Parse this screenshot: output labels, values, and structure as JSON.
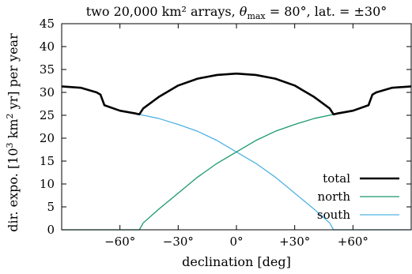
{
  "chart_data": {
    "type": "line",
    "title": "two 20,000 km² arrays, θmax = 80°, lat. = ±30°",
    "title_parts": {
      "pre": "two 20,000 km² arrays, ",
      "theta": "θ",
      "theta_sub": "max",
      "post": " = 80°, lat. = ±30°"
    },
    "xlabel": "declination [deg]",
    "ylabel": "dir. expo. [10³ km² yr] per year",
    "ylabel_parts": {
      "pre": "dir. expo. [10",
      "sup1": "3",
      "mid": " km",
      "sup2": "2",
      "post": " yr] per year"
    },
    "xlim": [
      -90,
      90
    ],
    "ylim": [
      0,
      45
    ],
    "x_ticks": [
      -60,
      -30,
      0,
      30,
      60
    ],
    "x_tick_labels": [
      "−60°",
      "−30°",
      "0°",
      "+30°",
      "+60°"
    ],
    "y_ticks": [
      0,
      5,
      10,
      15,
      20,
      25,
      30,
      35,
      40,
      45
    ],
    "y_tick_labels": [
      "0",
      "5",
      "10",
      "15",
      "20",
      "25",
      "30",
      "35",
      "40",
      "45"
    ],
    "legend_position": "bottom-right",
    "colors": {
      "total": "#000000",
      "north": "#1a9a6a",
      "south": "#4fb3e3"
    },
    "series": [
      {
        "name": "total",
        "x": [
          -90,
          -80,
          -72,
          -70,
          -68,
          -60,
          -52,
          -50,
          -48,
          -40,
          -30,
          -20,
          -10,
          0,
          10,
          20,
          30,
          40,
          48,
          50,
          52,
          60,
          68,
          70,
          72,
          80,
          90
        ],
        "y": [
          31.3,
          31.0,
          30.0,
          29.5,
          27.2,
          26.0,
          25.4,
          25.2,
          26.5,
          29.0,
          31.5,
          33.0,
          33.8,
          34.1,
          33.8,
          33.0,
          31.5,
          29.0,
          26.5,
          25.2,
          25.4,
          26.0,
          27.2,
          29.5,
          30.0,
          31.0,
          31.3
        ]
      },
      {
        "name": "north",
        "x": [
          -90,
          -80,
          -70,
          -60,
          -52,
          -50,
          -48,
          -40,
          -30,
          -20,
          -10,
          0,
          10,
          20,
          30,
          40,
          50,
          52,
          60,
          68,
          70,
          72,
          80,
          90
        ],
        "y": [
          0,
          0,
          0,
          0,
          0,
          0,
          1.5,
          4.5,
          8.0,
          11.5,
          14.5,
          17.0,
          19.5,
          21.5,
          23.0,
          24.3,
          25.2,
          25.4,
          26.0,
          27.2,
          29.5,
          30.0,
          31.0,
          31.3
        ]
      },
      {
        "name": "south",
        "x": [
          -90,
          -80,
          -72,
          -70,
          -68,
          -60,
          -52,
          -50,
          -40,
          -30,
          -20,
          -10,
          0,
          10,
          20,
          30,
          40,
          48,
          50,
          60,
          70,
          80,
          90
        ],
        "y": [
          31.3,
          31.0,
          30.0,
          29.5,
          27.2,
          26.0,
          25.4,
          25.2,
          24.3,
          23.0,
          21.5,
          19.5,
          17.0,
          14.5,
          11.5,
          8.0,
          4.5,
          1.5,
          0,
          0,
          0,
          0,
          0
        ]
      }
    ]
  }
}
